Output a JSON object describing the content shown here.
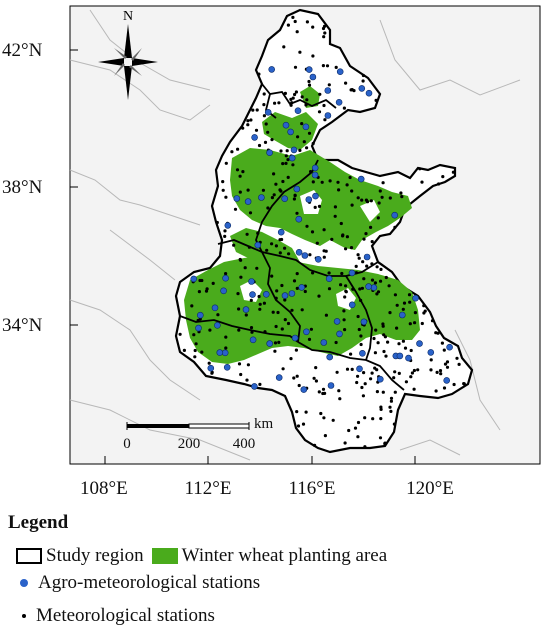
{
  "map": {
    "north_label": "N",
    "lat_labels": [
      "42°N",
      "38°N",
      "34°N"
    ],
    "lon_labels": [
      "108°E",
      "112°E",
      "116°E",
      "120°E"
    ],
    "scale": {
      "ticks": [
        "0",
        "200",
        "400"
      ],
      "unit": "km"
    },
    "colors": {
      "wheat": "#4aab1c",
      "agro_station": "#2a62c9",
      "met_station": "#000000",
      "region_border": "#000000",
      "background_land": "#f2f2f2"
    }
  },
  "legend": {
    "title": "Legend",
    "study_region": "Study region",
    "winter_wheat": "Winter wheat  planting area",
    "agro_stations": "Agro-meteorological stations",
    "met_stations": "Meteorological stations"
  }
}
